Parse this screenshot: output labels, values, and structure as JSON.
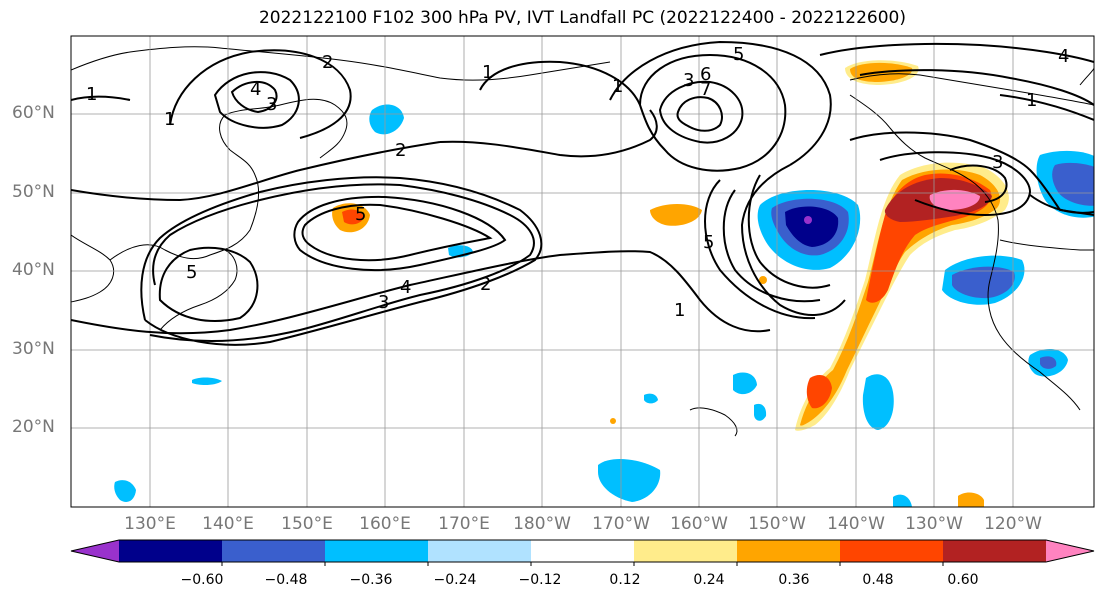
{
  "title": "2022122100 F102 300 hPa PV, IVT Landfall PC (2022122400 - 2022122600)",
  "lat_labels": [
    "60°N",
    "50°N",
    "40°N",
    "30°N",
    "20°N"
  ],
  "lon_labels": [
    "130°E",
    "140°E",
    "150°E",
    "160°E",
    "170°E",
    "180°W",
    "170°W",
    "160°W",
    "150°W",
    "140°W",
    "130°W",
    "120°W"
  ],
  "contour_labels": [
    "1",
    "2",
    "3",
    "4",
    "5",
    "6",
    "7"
  ],
  "colorbar": {
    "tick_labels": [
      "−0.60",
      "−0.48",
      "−0.36",
      "−0.24",
      "−0.12",
      "0.12",
      "0.24",
      "0.36",
      "0.48",
      "0.60"
    ],
    "colors": [
      "#9932cc",
      "#00008b",
      "#3a5fcd",
      "#00bfff",
      "#b0e2ff",
      "#ffffff",
      "#ffec8b",
      "#ffa500",
      "#ff4500",
      "#b22222",
      "#ff83c0"
    ]
  }
}
